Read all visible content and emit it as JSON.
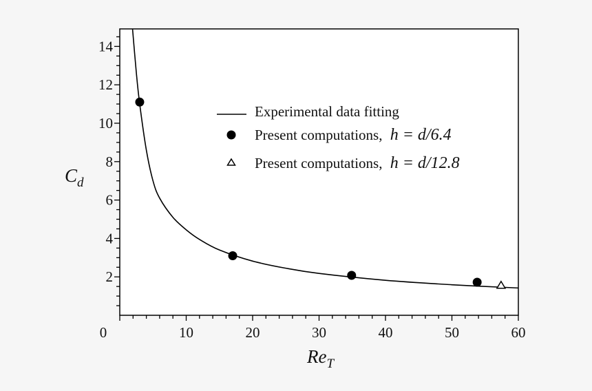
{
  "chart_data": {
    "type": "scatter",
    "title": "",
    "xlabel": "Re",
    "xlabel_sub": "T",
    "ylabel": "C",
    "ylabel_sub": "d",
    "xlim": [
      0,
      60
    ],
    "ylim": [
      0,
      15
    ],
    "x_ticks": [
      0,
      10,
      20,
      30,
      40,
      50,
      60
    ],
    "x_tick_labels": [
      "0",
      "10",
      "20",
      "30",
      "40",
      "50",
      "60"
    ],
    "y_ticks": [
      2,
      4,
      6,
      8,
      10,
      12,
      14
    ],
    "y_tick_labels": [
      "2",
      "4",
      "6",
      "8",
      "10",
      "12",
      "14"
    ],
    "x_minor_step": 2,
    "y_minor_step": 0.5,
    "grid": false,
    "legend_position": "upper-right-center",
    "series": [
      {
        "name": "Experimental data fitting",
        "kind": "line",
        "x": [
          1.9,
          2.5,
          3,
          4,
          5,
          6,
          8,
          10,
          12,
          15,
          20,
          25,
          30,
          40,
          50,
          60
        ],
        "y": [
          15.0,
          12.6,
          11.0,
          8.6,
          7.0,
          6.1,
          5.1,
          4.45,
          3.95,
          3.4,
          2.82,
          2.45,
          2.18,
          1.82,
          1.59,
          1.42
        ]
      },
      {
        "name": "Present computations, ",
        "math": "h = d/6.4",
        "kind": "marker-filled-circle",
        "x": [
          3.0,
          17.0,
          34.9,
          53.8
        ],
        "y": [
          11.1,
          3.1,
          2.08,
          1.72
        ]
      },
      {
        "name": "Present computations, ",
        "math": "h = d/12.8",
        "kind": "marker-open-triangle",
        "x": [
          57.4
        ],
        "y": [
          1.55
        ]
      }
    ]
  }
}
